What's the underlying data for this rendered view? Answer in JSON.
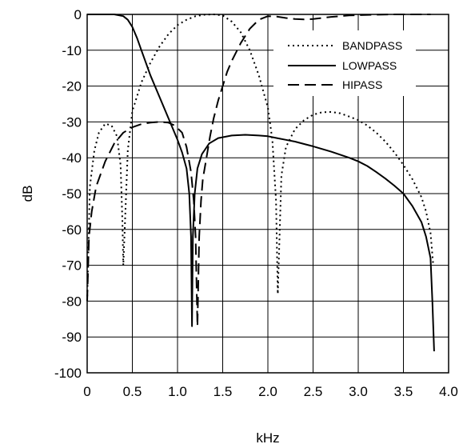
{
  "chart_data": {
    "type": "line",
    "title": "",
    "xlabel": "kHz",
    "ylabel": "dB",
    "xlim": [
      0,
      4.0
    ],
    "ylim": [
      -100,
      0
    ],
    "x_ticks": [
      0,
      0.5,
      1.0,
      1.5,
      2.0,
      2.5,
      3.0,
      3.5,
      4.0
    ],
    "x_tick_labels": [
      "0",
      "0.5",
      "1.0",
      "1.5",
      "2.0",
      "2.5",
      "3.0",
      "3.5",
      "4.0"
    ],
    "y_ticks": [
      0,
      -10,
      -20,
      -30,
      -40,
      -50,
      -60,
      -70,
      -80,
      -90,
      -100
    ],
    "y_tick_labels": [
      "0",
      "-10",
      "-20",
      "-30",
      "-40",
      "-50",
      "-60",
      "-70",
      "-80",
      "-90",
      "-100"
    ],
    "grid": true,
    "legend_position": "top-right",
    "series": [
      {
        "name": "BANDPASS",
        "style": "dotted",
        "points": [
          [
            0.0,
            -80
          ],
          [
            0.03,
            -48
          ],
          [
            0.08,
            -38
          ],
          [
            0.13,
            -33
          ],
          [
            0.2,
            -30.5
          ],
          [
            0.27,
            -31
          ],
          [
            0.33,
            -34
          ],
          [
            0.37,
            -42
          ],
          [
            0.39,
            -58
          ],
          [
            0.4,
            -70
          ],
          [
            0.45,
            -38
          ],
          [
            0.5,
            -27
          ],
          [
            0.6,
            -19
          ],
          [
            0.7,
            -13.5
          ],
          [
            0.8,
            -9
          ],
          [
            0.9,
            -5.5
          ],
          [
            1.0,
            -3
          ],
          [
            1.1,
            -1.5
          ],
          [
            1.2,
            -0.5
          ],
          [
            1.3,
            -0.1
          ],
          [
            1.4,
            0
          ],
          [
            1.5,
            -0.3
          ],
          [
            1.6,
            -2
          ],
          [
            1.7,
            -5
          ],
          [
            1.8,
            -10
          ],
          [
            1.9,
            -17
          ],
          [
            2.0,
            -26
          ],
          [
            2.05,
            -35
          ],
          [
            2.09,
            -52
          ],
          [
            2.11,
            -78
          ],
          [
            2.15,
            -45
          ],
          [
            2.2,
            -37
          ],
          [
            2.3,
            -32
          ],
          [
            2.4,
            -29.5
          ],
          [
            2.5,
            -28
          ],
          [
            2.6,
            -27.3
          ],
          [
            2.7,
            -27.2
          ],
          [
            2.8,
            -27.6
          ],
          [
            2.9,
            -28.5
          ],
          [
            3.0,
            -29.5
          ],
          [
            3.1,
            -31
          ],
          [
            3.2,
            -33
          ],
          [
            3.3,
            -35.5
          ],
          [
            3.4,
            -38.5
          ],
          [
            3.5,
            -42
          ],
          [
            3.6,
            -46
          ],
          [
            3.7,
            -51
          ],
          [
            3.75,
            -55
          ],
          [
            3.8,
            -61
          ],
          [
            3.83,
            -70
          ]
        ]
      },
      {
        "name": "LOWPASS",
        "style": "solid",
        "points": [
          [
            0.0,
            0
          ],
          [
            0.1,
            0
          ],
          [
            0.2,
            0
          ],
          [
            0.3,
            0
          ],
          [
            0.4,
            -0.5
          ],
          [
            0.45,
            -1.5
          ],
          [
            0.5,
            -3.5
          ],
          [
            0.55,
            -6.5
          ],
          [
            0.6,
            -10
          ],
          [
            0.7,
            -17
          ],
          [
            0.8,
            -23
          ],
          [
            0.9,
            -29
          ],
          [
            1.0,
            -35
          ],
          [
            1.05,
            -38.5
          ],
          [
            1.1,
            -43
          ],
          [
            1.13,
            -50
          ],
          [
            1.15,
            -62
          ],
          [
            1.16,
            -87
          ],
          [
            1.17,
            -62
          ],
          [
            1.19,
            -50
          ],
          [
            1.22,
            -43
          ],
          [
            1.27,
            -39
          ],
          [
            1.35,
            -36
          ],
          [
            1.45,
            -34.5
          ],
          [
            1.6,
            -33.8
          ],
          [
            1.75,
            -33.6
          ],
          [
            1.9,
            -33.8
          ],
          [
            2.0,
            -34
          ],
          [
            2.1,
            -34.5
          ],
          [
            2.2,
            -35
          ],
          [
            2.3,
            -35.5
          ],
          [
            2.5,
            -36.8
          ],
          [
            2.7,
            -38.3
          ],
          [
            2.9,
            -40
          ],
          [
            3.0,
            -41
          ],
          [
            3.1,
            -42.3
          ],
          [
            3.2,
            -44
          ],
          [
            3.3,
            -45.8
          ],
          [
            3.4,
            -47.8
          ],
          [
            3.5,
            -50
          ],
          [
            3.6,
            -53.5
          ],
          [
            3.7,
            -58
          ],
          [
            3.75,
            -62
          ],
          [
            3.8,
            -68
          ],
          [
            3.82,
            -80
          ],
          [
            3.84,
            -94
          ]
        ]
      },
      {
        "name": "HIPASS",
        "style": "dashed",
        "points": [
          [
            0.0,
            -80
          ],
          [
            0.02,
            -62
          ],
          [
            0.05,
            -55
          ],
          [
            0.1,
            -48
          ],
          [
            0.2,
            -41
          ],
          [
            0.3,
            -36
          ],
          [
            0.4,
            -33
          ],
          [
            0.5,
            -31.5
          ],
          [
            0.6,
            -30.6
          ],
          [
            0.7,
            -30.2
          ],
          [
            0.8,
            -30
          ],
          [
            0.9,
            -30.2
          ],
          [
            0.97,
            -31
          ],
          [
            1.05,
            -33
          ],
          [
            1.1,
            -37
          ],
          [
            1.15,
            -44
          ],
          [
            1.18,
            -52
          ],
          [
            1.2,
            -62
          ],
          [
            1.22,
            -87
          ],
          [
            1.24,
            -62
          ],
          [
            1.26,
            -52
          ],
          [
            1.28,
            -46
          ],
          [
            1.32,
            -40
          ],
          [
            1.36,
            -34
          ],
          [
            1.4,
            -29
          ],
          [
            1.45,
            -24
          ],
          [
            1.5,
            -20
          ],
          [
            1.55,
            -16
          ],
          [
            1.6,
            -13
          ],
          [
            1.7,
            -8
          ],
          [
            1.8,
            -4
          ],
          [
            1.9,
            -1.5
          ],
          [
            2.0,
            -0.5
          ],
          [
            2.1,
            -0.6
          ],
          [
            2.2,
            -1
          ],
          [
            2.3,
            -1.3
          ],
          [
            2.4,
            -1.4
          ],
          [
            2.5,
            -1.3
          ],
          [
            2.6,
            -1
          ],
          [
            2.7,
            -0.7
          ],
          [
            2.8,
            -0.5
          ],
          [
            2.9,
            -0.3
          ],
          [
            3.0,
            -0.2
          ],
          [
            3.2,
            -0.1
          ],
          [
            3.4,
            0
          ],
          [
            3.6,
            0
          ],
          [
            3.8,
            0
          ]
        ]
      }
    ]
  }
}
